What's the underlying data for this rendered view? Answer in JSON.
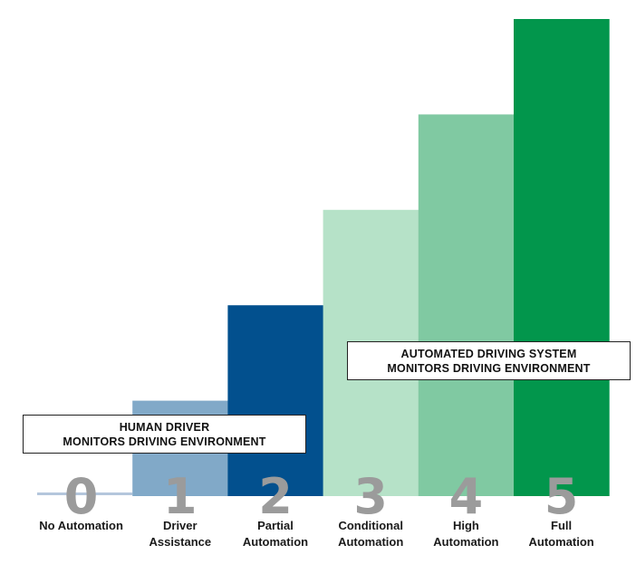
{
  "chart_data": {
    "type": "bar",
    "categories": [
      "0",
      "1",
      "2",
      "3",
      "4",
      "5"
    ],
    "category_labels": [
      [
        "No Automation"
      ],
      [
        "Driver",
        "Assistance"
      ],
      [
        "Partial",
        "Automation"
      ],
      [
        "Conditional",
        "Automation"
      ],
      [
        "High",
        "Automation"
      ],
      [
        "Full",
        "Automation"
      ]
    ],
    "values": [
      0,
      1,
      2,
      3,
      4,
      5
    ],
    "ylim": [
      0,
      5
    ],
    "colors": [
      "#b4c6dc",
      "#81a9c8",
      "#02508e",
      "#b6e2c8",
      "#80c9a2",
      "#02964c"
    ],
    "numeral_color": "#9b9b9b",
    "grid": false,
    "annotations": [
      {
        "line1": "HUMAN DRIVER",
        "line2": "MONITORS DRIVING ENVIRONMENT"
      },
      {
        "line1": "AUTOMATED DRIVING SYSTEM",
        "line2": "MONITORS DRIVING ENVIRONMENT"
      }
    ]
  }
}
